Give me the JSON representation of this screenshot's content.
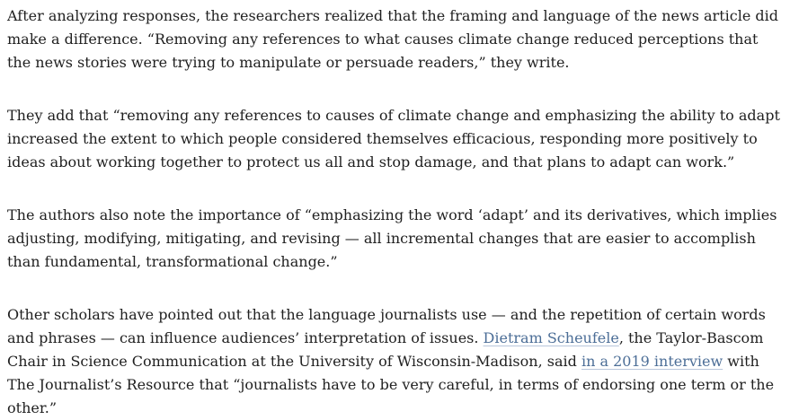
{
  "page": {
    "background_color": "#ffffff",
    "text_color": "#1f1f1f",
    "link_color": "#4c6e97",
    "link_underline_color": "#b9c7db"
  },
  "article": {
    "paragraphs": [
      {
        "segments": [
          {
            "type": "text",
            "text": "After analyzing responses, the researchers realized that the framing and language of the news article did make a difference. “Removing any references to what causes climate change reduced perceptions that the news stories were trying to manipulate or persuade readers,” they write."
          }
        ]
      },
      {
        "segments": [
          {
            "type": "text",
            "text": "They add that “removing any references to causes of climate change and emphasizing the ability to adapt increased the extent to which people considered themselves efficacious, responding more positively to ideas about working together to protect us all and stop damage, and that plans to adapt can work.”"
          }
        ]
      },
      {
        "segments": [
          {
            "type": "text",
            "text": "The authors also note the importance of “emphasizing the word ‘adapt’ and its derivatives, which implies adjusting, modifying, mitigating, and revising — all incremental changes that are easier to accomplish than fundamental, transformational change.”"
          }
        ]
      },
      {
        "segments": [
          {
            "type": "text",
            "text": "Other scholars have pointed out that the language journalists use — and the repetition of certain words and phrases — can influence audiences’ interpretation of issues. "
          },
          {
            "type": "link",
            "text": "Dietram Scheufele"
          },
          {
            "type": "text",
            "text": ", the Taylor-Bascom Chair in Science Communication at the University of Wisconsin-Madison, said "
          },
          {
            "type": "link",
            "text": "in a 2019 interview"
          },
          {
            "type": "text",
            "text": " with The Journalist’s Resource that “journalists have to be very careful, in terms of endorsing one term or the other.”"
          }
        ]
      }
    ]
  }
}
